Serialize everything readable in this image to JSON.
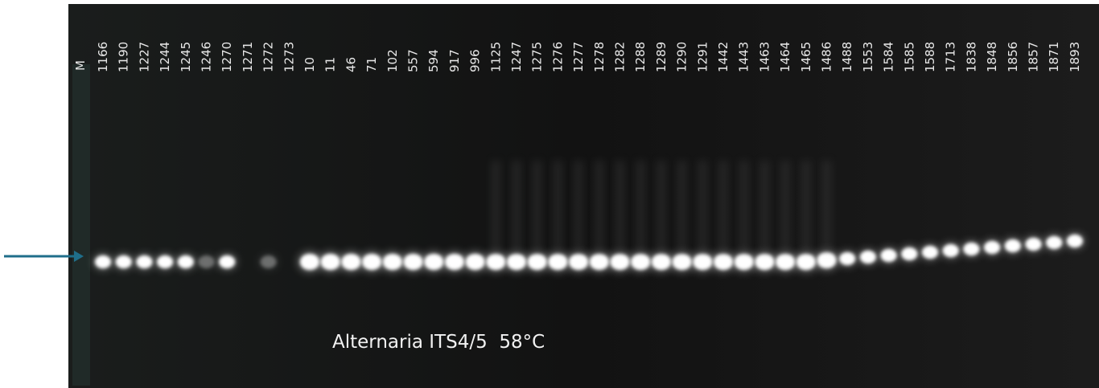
{
  "lanes": [
    "M",
    "1166",
    "1190",
    "1227",
    "1244",
    "1245",
    "1246",
    "1270",
    "1271",
    "1272",
    "1273",
    "10",
    "11",
    "46",
    "71",
    "102",
    "557",
    "594",
    "917",
    "996",
    "1125",
    "1247",
    "1275",
    "1276",
    "1277",
    "1278",
    "1282",
    "1288",
    "1289",
    "1290",
    "1291",
    "1442",
    "1443",
    "1463",
    "1464",
    "1465",
    "1486",
    "1488",
    "1553",
    "1584",
    "1585",
    "1588",
    "1713",
    "1838",
    "1848",
    "1856",
    "1857",
    "1871",
    "1893"
  ],
  "caption": "Alternaria ITS4/5  58°C"
}
